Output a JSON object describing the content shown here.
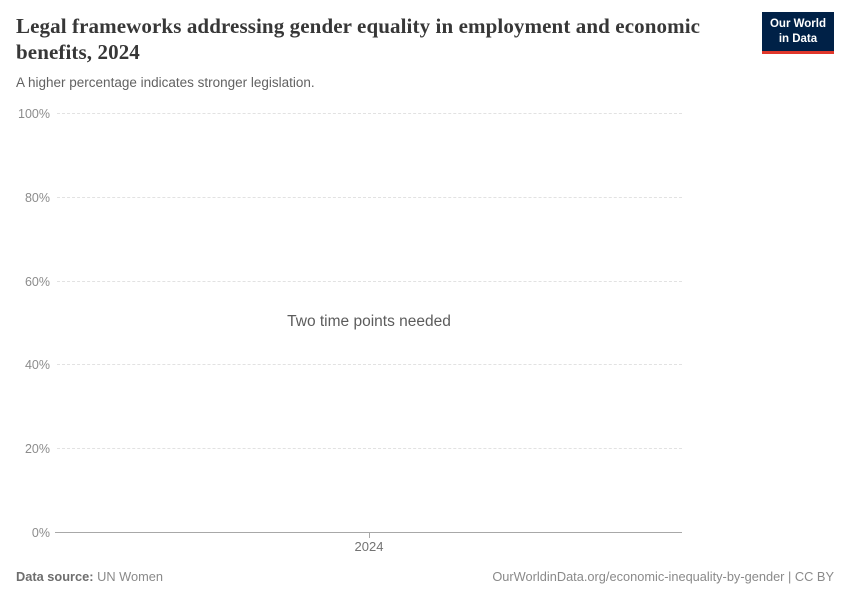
{
  "header": {
    "title": "Legal frameworks addressing gender equality in employment and economic benefits, 2024",
    "subtitle": "A higher percentage indicates stronger legislation."
  },
  "logo": {
    "line1": "Our World",
    "line2": "in Data",
    "bg_color": "#002147",
    "accent_color": "#e0372b"
  },
  "chart_data": {
    "type": "line",
    "title": "Legal frameworks addressing gender equality in employment and economic benefits, 2024",
    "ylabel": "",
    "xlabel": "",
    "ylim": [
      0,
      100
    ],
    "y_ticks": [
      0,
      20,
      40,
      60,
      80,
      100
    ],
    "y_tick_labels": [
      "0%",
      "20%",
      "40%",
      "60%",
      "80%",
      "100%"
    ],
    "x_ticks": [
      "2024"
    ],
    "series": [],
    "grid": "horizontal-dashed",
    "message": "Two time points needed"
  },
  "footer": {
    "datasource_label": "Data source:",
    "datasource_value": "UN Women",
    "attribution": "OurWorldinData.org/economic-inequality-by-gender | CC BY"
  },
  "colors": {
    "title": "#373737",
    "subtitle": "#626262",
    "axis_label": "#8c8c8c",
    "gridline": "#e2e2e2",
    "axis_line": "#a8a8a8",
    "message": "#5c5c5c",
    "footer": "#8a8a8a"
  }
}
